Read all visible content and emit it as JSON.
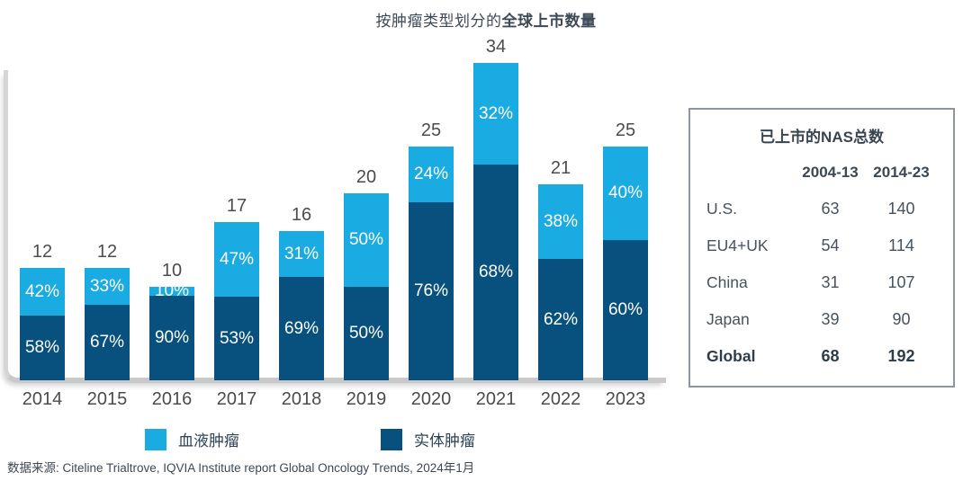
{
  "title": {
    "prefix": "按肿瘤类型划分的",
    "bold": "全球上市数量"
  },
  "chart_data": {
    "type": "bar",
    "stacked": true,
    "title": "按肿瘤类型划分的全球上市数量",
    "categories": [
      "2014",
      "2015",
      "2016",
      "2017",
      "2018",
      "2019",
      "2020",
      "2021",
      "2022",
      "2023"
    ],
    "totals": [
      12,
      12,
      10,
      17,
      16,
      20,
      25,
      34,
      21,
      25
    ],
    "series": [
      {
        "name": "血液肿瘤",
        "color": "#1aabe2",
        "pct": [
          42,
          33,
          10,
          47,
          31,
          50,
          24,
          32,
          38,
          40
        ]
      },
      {
        "name": "实体肿瘤",
        "color": "#08507e",
        "pct": [
          58,
          67,
          90,
          53,
          69,
          50,
          76,
          68,
          62,
          60
        ]
      }
    ],
    "value_suffix": "%",
    "legend_position": "bottom",
    "grid": false,
    "ylim": [
      0,
      34
    ]
  },
  "legend": [
    {
      "label": "血液肿瘤",
      "color": "#1aabe2"
    },
    {
      "label": "实体肿瘤",
      "color": "#08507e"
    }
  ],
  "table": {
    "title": "已上市的NAS总数",
    "columns": [
      "",
      "2004-13",
      "2014-23"
    ],
    "rows": [
      {
        "region": "U.S.",
        "v1": "63",
        "v2": "140",
        "bold": false
      },
      {
        "region": "EU4+UK",
        "v1": "54",
        "v2": "114",
        "bold": false
      },
      {
        "region": "China",
        "v1": "31",
        "v2": "107",
        "bold": false
      },
      {
        "region": "Japan",
        "v1": "39",
        "v2": "90",
        "bold": false
      },
      {
        "region": "Global",
        "v1": "68",
        "v2": "192",
        "bold": true
      }
    ]
  },
  "footer": "数据来源: Citeline Trialtrove, IQVIA Institute report Global Oncology Trends, 2024年1月"
}
